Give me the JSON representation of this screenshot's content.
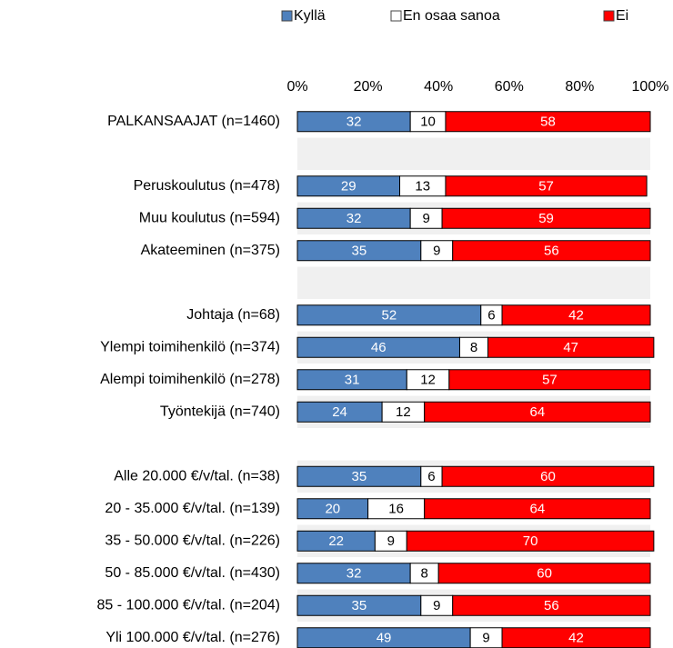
{
  "chart_data": {
    "type": "stacked-bar-horizontal",
    "categories": [
      "PALKANSAAJAT (n=1460)",
      null,
      "Peruskoulutus (n=478)",
      "Muu koulutus (n=594)",
      "Akateeminen (n=375)",
      null,
      "Johtaja (n=68)",
      "Ylempi toimihenkilö (n=374)",
      "Alempi toimihenkilö (n=278)",
      "Työntekijä (n=740)",
      null,
      "Alle 20.000 €/v/tal. (n=38)",
      "20 - 35.000 €/v/tal. (n=139)",
      "35 - 50.000 €/v/tal. (n=226)",
      "50 - 85.000 €/v/tal. (n=430)",
      "85 - 100.000 €/v/tal. (n=204)",
      "Yli 100.000 €/v/tal. (n=276)"
    ],
    "series": [
      {
        "name": "Kyllä",
        "color": "#4f81bd",
        "label_color": "#ffffff",
        "values": [
          32,
          null,
          29,
          32,
          35,
          null,
          52,
          46,
          31,
          24,
          null,
          35,
          20,
          22,
          32,
          35,
          49
        ]
      },
      {
        "name": "En osaa sanoa",
        "color": "#ffffff",
        "label_color": "#000000",
        "values": [
          10,
          null,
          13,
          9,
          9,
          null,
          6,
          8,
          12,
          12,
          null,
          6,
          16,
          9,
          8,
          9,
          9
        ]
      },
      {
        "name": "Ei",
        "color": "#ff0000",
        "label_color": "#ffffff",
        "values": [
          58,
          null,
          57,
          59,
          56,
          null,
          42,
          47,
          57,
          64,
          null,
          60,
          64,
          70,
          60,
          56,
          42
        ]
      }
    ],
    "xlim": [
      0,
      100
    ],
    "xticks": [
      {
        "value": 0,
        "label": "0%"
      },
      {
        "value": 20,
        "label": "20%"
      },
      {
        "value": 40,
        "label": "40%"
      },
      {
        "value": 60,
        "label": "60%"
      },
      {
        "value": 80,
        "label": "80%"
      },
      {
        "value": 100,
        "label": "100%"
      }
    ],
    "legend": "top"
  }
}
